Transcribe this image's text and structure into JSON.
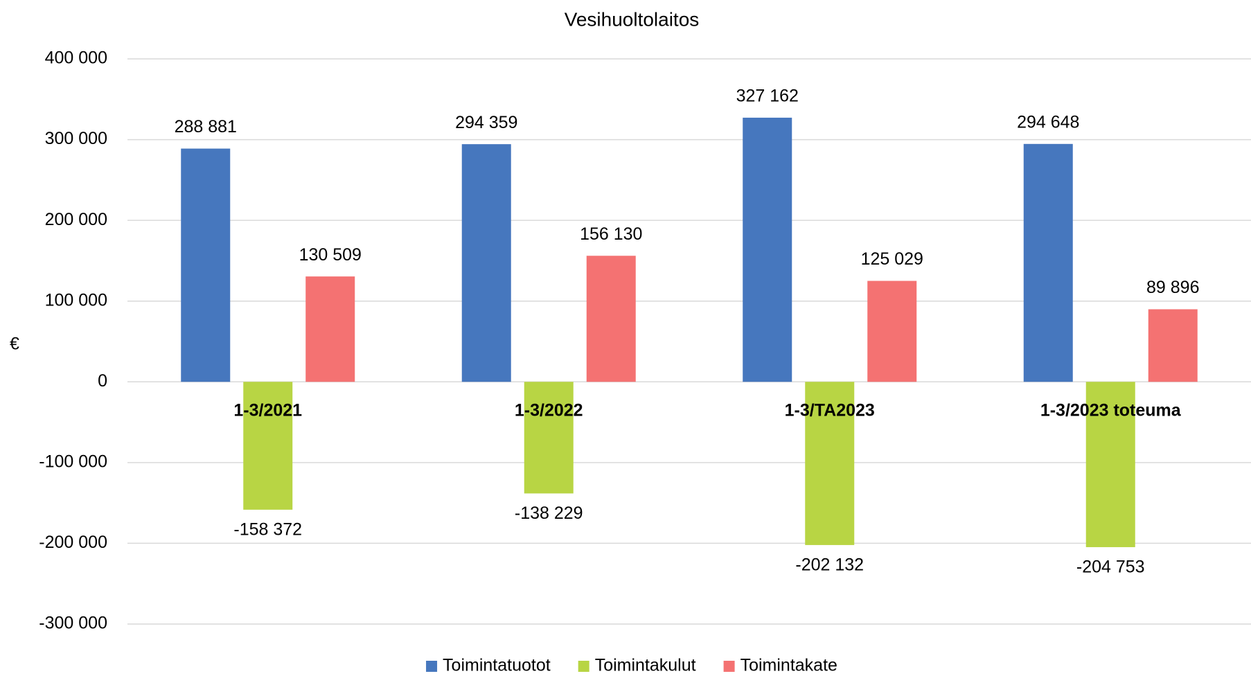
{
  "chart_data": {
    "type": "bar",
    "title": "Vesihuoltolaitos",
    "y_label": "€",
    "categories": [
      "1-3/2021",
      "1-3/2022",
      "1-3/TA2023",
      "1-3/2023 toteuma"
    ],
    "series": [
      {
        "name": "Toimintatuotot",
        "color": "#4677be",
        "values": [
          288881,
          294359,
          327162,
          294648
        ],
        "value_labels": [
          "288 881",
          "294 359",
          "327 162",
          "294 648"
        ]
      },
      {
        "name": "Toimintakulut",
        "color": "#b8d544",
        "values": [
          -158372,
          -138229,
          -202132,
          -204753
        ],
        "value_labels": [
          "-158 372",
          "-138 229",
          "-202 132",
          "-204 753"
        ]
      },
      {
        "name": "Toimintakate",
        "color": "#f47272",
        "values": [
          130509,
          156130,
          125029,
          89896
        ],
        "value_labels": [
          "130 509",
          "156 130",
          "125 029",
          "89 896"
        ]
      }
    ],
    "ylim": [
      -300000,
      400000
    ],
    "yticks": [
      {
        "value": -300000,
        "label": "-300 000"
      },
      {
        "value": -200000,
        "label": "-200 000"
      },
      {
        "value": -100000,
        "label": "-100 000"
      },
      0,
      {
        "value": 100000,
        "label": "100 000"
      },
      {
        "value": 200000,
        "label": "200 000"
      },
      {
        "value": 300000,
        "label": "300 000"
      },
      {
        "value": 400000,
        "label": "400 000"
      }
    ],
    "grid": true,
    "legend": "bottom"
  }
}
